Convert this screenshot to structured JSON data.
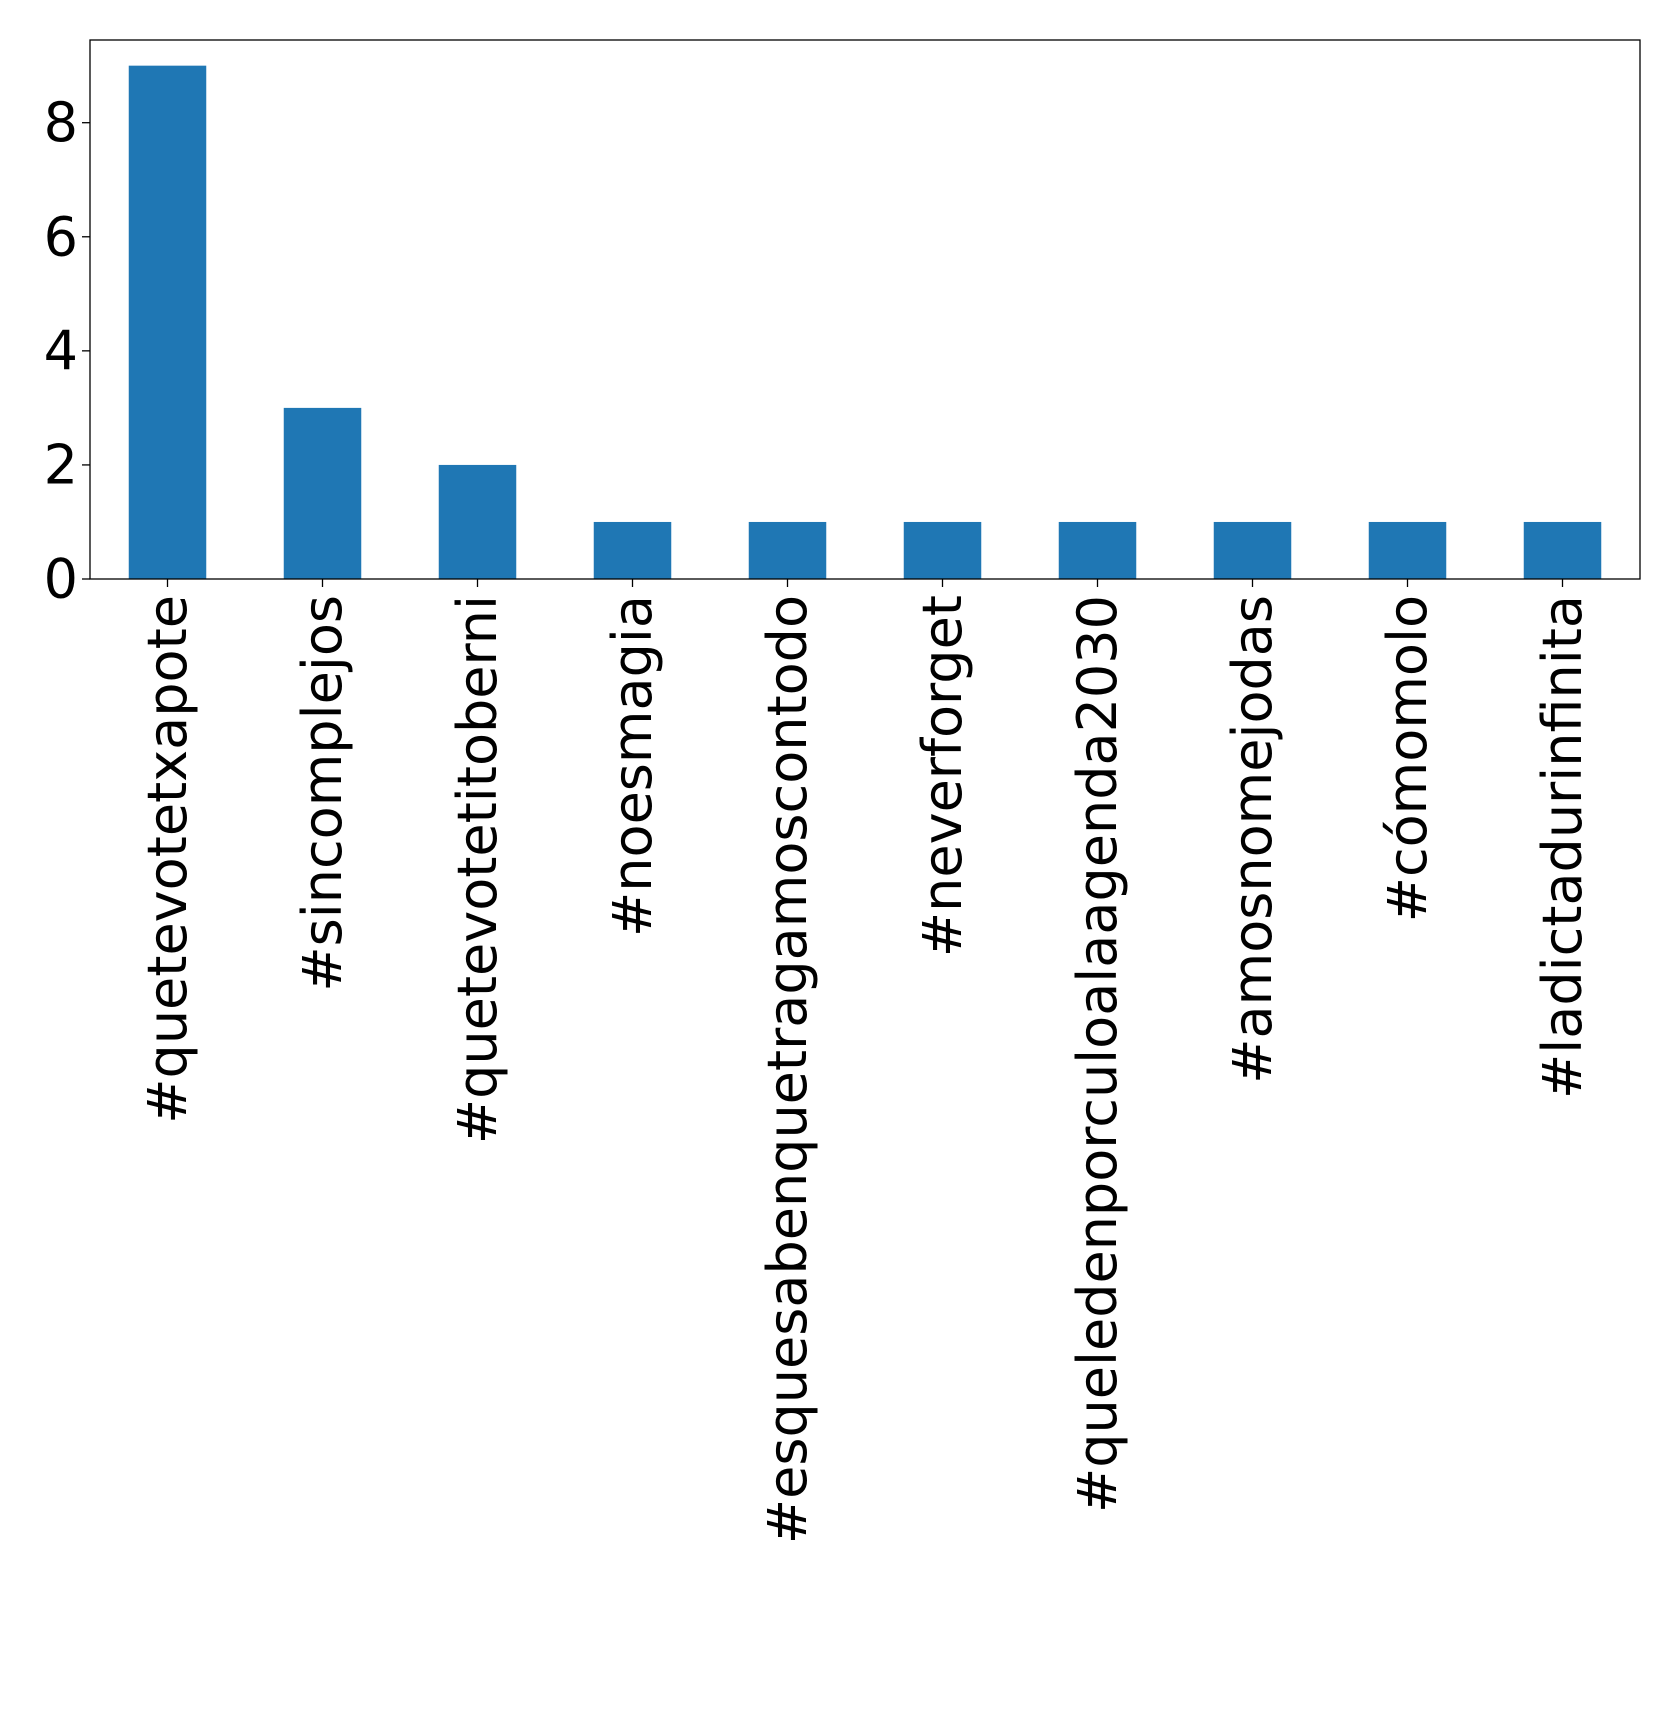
{
  "chart_data": {
    "type": "bar",
    "title": "",
    "xlabel": "",
    "ylabel": "",
    "categories": [
      "#quetevotetxapote",
      "#sincomplejos",
      "#quetevotetitoberni",
      "#noesmagia",
      "#esquesabenquetragamoscontodo",
      "#neverforget",
      "#queledenporculoalaagenda2030",
      "#amosnomejodas",
      "#cómomolo",
      "#ladictadurinfinita"
    ],
    "values": [
      9,
      3,
      2,
      1,
      1,
      1,
      1,
      1,
      1,
      1
    ],
    "ylim": [
      0,
      9.45
    ],
    "yticks": [
      0,
      2,
      4,
      6,
      8
    ],
    "bar_color": "#1f77b4",
    "grid": false,
    "legend": "none"
  }
}
